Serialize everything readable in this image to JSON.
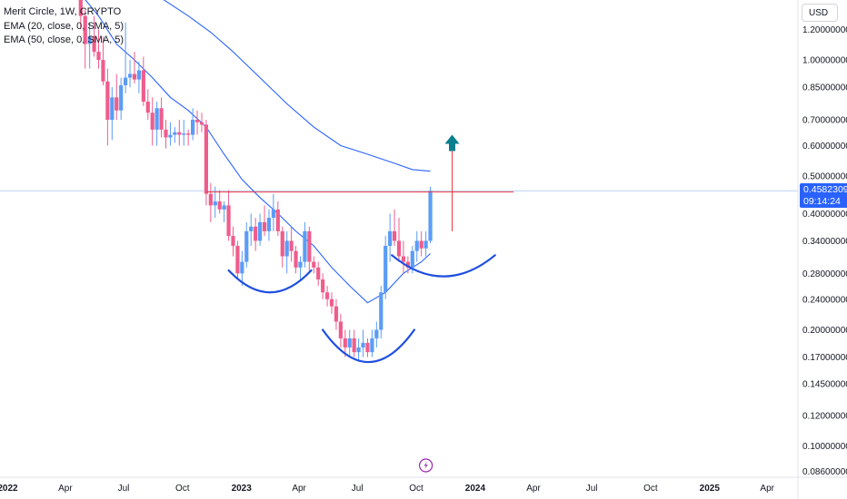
{
  "legend": {
    "title": "Merit Circle, 1W, CRYPTO",
    "ema20": "EMA (20, close, 0, SMA, 5)",
    "ema50": "EMA (50, close, 0, SMA, 5)"
  },
  "currency": "USD",
  "price_badge": {
    "price": "0.45823090",
    "countdown": "09:14:24"
  },
  "colors": {
    "up": "#5b9cf6",
    "down": "#ef5d8c",
    "ema": "#2962ff",
    "resistance": "#f23645",
    "cup": "#1e4fe0",
    "arrow": "#087f8c",
    "badge": "#2962ff",
    "lightning": "#9c27b0"
  },
  "icons": {
    "event_marker": "lightning-icon",
    "target_arrow": "up-arrow-icon"
  },
  "chart_data": {
    "type": "candlestick",
    "scale": "log",
    "title": "Merit Circle, 1W, CRYPTO",
    "xlabel": "",
    "ylabel": "",
    "grid": false,
    "ylim": [
      0.083,
      1.43
    ],
    "xlim": [
      "2021-12-20",
      "2025-05-19"
    ],
    "y_ticks": [
      "1.20000000",
      "1.00000000",
      "0.85000000",
      "0.70000000",
      "0.60000000",
      "0.50000000",
      "0.40000000",
      "0.34000000",
      "0.28000000",
      "0.24000000",
      "0.20000000",
      "0.17000000",
      "0.14500000",
      "0.12000000",
      "0.10000000",
      "0.08600000"
    ],
    "y_tick_values": [
      1.2,
      1.0,
      0.85,
      0.7,
      0.6,
      0.5,
      0.4,
      0.34,
      0.28,
      0.24,
      0.2,
      0.17,
      0.145,
      0.12,
      0.1,
      0.086
    ],
    "x_ticks": [
      {
        "label": "2022",
        "date": "2022-01-01",
        "year": true
      },
      {
        "label": "Apr",
        "date": "2022-04-01"
      },
      {
        "label": "Jul",
        "date": "2022-07-01"
      },
      {
        "label": "Oct",
        "date": "2022-10-01"
      },
      {
        "label": "2023",
        "date": "2023-01-01",
        "year": true
      },
      {
        "label": "Apr",
        "date": "2023-04-01"
      },
      {
        "label": "Jul",
        "date": "2023-07-01"
      },
      {
        "label": "Oct",
        "date": "2023-10-01"
      },
      {
        "label": "2024",
        "date": "2024-01-01",
        "year": true
      },
      {
        "label": "Apr",
        "date": "2024-04-01"
      },
      {
        "label": "Jul",
        "date": "2024-07-01"
      },
      {
        "label": "Oct",
        "date": "2024-10-01"
      },
      {
        "label": "2025",
        "date": "2025-01-01",
        "year": true
      },
      {
        "label": "Apr",
        "date": "2025-04-01"
      }
    ],
    "candles": [
      {
        "t": "2022-04-25",
        "o": 1.45,
        "h": 1.5,
        "l": 1.2,
        "c": 1.3
      },
      {
        "t": "2022-05-02",
        "o": 1.3,
        "h": 1.35,
        "l": 0.95,
        "c": 1.1
      },
      {
        "t": "2022-05-09",
        "o": 1.1,
        "h": 1.25,
        "l": 0.95,
        "c": 1.15
      },
      {
        "t": "2022-05-16",
        "o": 1.15,
        "h": 1.3,
        "l": 1.02,
        "c": 1.05
      },
      {
        "t": "2022-05-23",
        "o": 1.05,
        "h": 1.2,
        "l": 0.95,
        "c": 1.0
      },
      {
        "t": "2022-05-30",
        "o": 1.0,
        "h": 1.15,
        "l": 0.86,
        "c": 0.88
      },
      {
        "t": "2022-06-06",
        "o": 0.88,
        "h": 0.95,
        "l": 0.6,
        "c": 0.7
      },
      {
        "t": "2022-06-13",
        "o": 0.7,
        "h": 0.85,
        "l": 0.62,
        "c": 0.8
      },
      {
        "t": "2022-06-20",
        "o": 0.8,
        "h": 0.92,
        "l": 0.7,
        "c": 0.74
      },
      {
        "t": "2022-06-27",
        "o": 0.74,
        "h": 0.9,
        "l": 0.7,
        "c": 0.86
      },
      {
        "t": "2022-07-04",
        "o": 0.86,
        "h": 1.25,
        "l": 0.82,
        "c": 0.9
      },
      {
        "t": "2022-07-11",
        "o": 0.9,
        "h": 1.0,
        "l": 0.85,
        "c": 0.92
      },
      {
        "t": "2022-07-18",
        "o": 0.92,
        "h": 1.05,
        "l": 0.87,
        "c": 0.89
      },
      {
        "t": "2022-07-25",
        "o": 0.89,
        "h": 0.99,
        "l": 0.82,
        "c": 0.94
      },
      {
        "t": "2022-08-01",
        "o": 0.94,
        "h": 1.02,
        "l": 0.76,
        "c": 0.78
      },
      {
        "t": "2022-08-08",
        "o": 0.78,
        "h": 0.84,
        "l": 0.7,
        "c": 0.73
      },
      {
        "t": "2022-08-15",
        "o": 0.73,
        "h": 0.8,
        "l": 0.6,
        "c": 0.66
      },
      {
        "t": "2022-08-22",
        "o": 0.66,
        "h": 0.78,
        "l": 0.6,
        "c": 0.75
      },
      {
        "t": "2022-08-29",
        "o": 0.75,
        "h": 0.8,
        "l": 0.63,
        "c": 0.66
      },
      {
        "t": "2022-09-05",
        "o": 0.66,
        "h": 0.7,
        "l": 0.59,
        "c": 0.63
      },
      {
        "t": "2022-09-12",
        "o": 0.63,
        "h": 0.69,
        "l": 0.6,
        "c": 0.64
      },
      {
        "t": "2022-09-19",
        "o": 0.64,
        "h": 0.67,
        "l": 0.61,
        "c": 0.65
      },
      {
        "t": "2022-09-26",
        "o": 0.65,
        "h": 0.7,
        "l": 0.6,
        "c": 0.64
      },
      {
        "t": "2022-10-03",
        "o": 0.64,
        "h": 0.7,
        "l": 0.6,
        "c": 0.645
      },
      {
        "t": "2022-10-10",
        "o": 0.645,
        "h": 0.66,
        "l": 0.6,
        "c": 0.64
      },
      {
        "t": "2022-10-17",
        "o": 0.64,
        "h": 0.75,
        "l": 0.62,
        "c": 0.7
      },
      {
        "t": "2022-10-24",
        "o": 0.7,
        "h": 0.74,
        "l": 0.64,
        "c": 0.69
      },
      {
        "t": "2022-10-31",
        "o": 0.69,
        "h": 0.73,
        "l": 0.65,
        "c": 0.68
      },
      {
        "t": "2022-11-07",
        "o": 0.68,
        "h": 0.7,
        "l": 0.42,
        "c": 0.45
      },
      {
        "t": "2022-11-14",
        "o": 0.45,
        "h": 0.48,
        "l": 0.38,
        "c": 0.42
      },
      {
        "t": "2022-11-21",
        "o": 0.42,
        "h": 0.47,
        "l": 0.39,
        "c": 0.43
      },
      {
        "t": "2022-11-28",
        "o": 0.43,
        "h": 0.46,
        "l": 0.4,
        "c": 0.41
      },
      {
        "t": "2022-12-05",
        "o": 0.41,
        "h": 0.43,
        "l": 0.38,
        "c": 0.42
      },
      {
        "t": "2022-12-12",
        "o": 0.42,
        "h": 0.46,
        "l": 0.34,
        "c": 0.35
      },
      {
        "t": "2022-12-19",
        "o": 0.35,
        "h": 0.37,
        "l": 0.31,
        "c": 0.33
      },
      {
        "t": "2022-12-26",
        "o": 0.33,
        "h": 0.34,
        "l": 0.27,
        "c": 0.28
      },
      {
        "t": "2023-01-02",
        "o": 0.28,
        "h": 0.32,
        "l": 0.26,
        "c": 0.3
      },
      {
        "t": "2023-01-09",
        "o": 0.3,
        "h": 0.38,
        "l": 0.29,
        "c": 0.36
      },
      {
        "t": "2023-01-16",
        "o": 0.36,
        "h": 0.4,
        "l": 0.33,
        "c": 0.37
      },
      {
        "t": "2023-01-23",
        "o": 0.37,
        "h": 0.39,
        "l": 0.32,
        "c": 0.34
      },
      {
        "t": "2023-01-30",
        "o": 0.34,
        "h": 0.4,
        "l": 0.33,
        "c": 0.38
      },
      {
        "t": "2023-02-06",
        "o": 0.38,
        "h": 0.42,
        "l": 0.35,
        "c": 0.36
      },
      {
        "t": "2023-02-13",
        "o": 0.36,
        "h": 0.41,
        "l": 0.34,
        "c": 0.39
      },
      {
        "t": "2023-02-20",
        "o": 0.39,
        "h": 0.45,
        "l": 0.36,
        "c": 0.41
      },
      {
        "t": "2023-02-27",
        "o": 0.41,
        "h": 0.43,
        "l": 0.35,
        "c": 0.36
      },
      {
        "t": "2023-03-06",
        "o": 0.36,
        "h": 0.37,
        "l": 0.29,
        "c": 0.31
      },
      {
        "t": "2023-03-13",
        "o": 0.31,
        "h": 0.36,
        "l": 0.28,
        "c": 0.34
      },
      {
        "t": "2023-03-20",
        "o": 0.34,
        "h": 0.37,
        "l": 0.3,
        "c": 0.32
      },
      {
        "t": "2023-03-27",
        "o": 0.32,
        "h": 0.33,
        "l": 0.28,
        "c": 0.29
      },
      {
        "t": "2023-04-03",
        "o": 0.29,
        "h": 0.31,
        "l": 0.27,
        "c": 0.3
      },
      {
        "t": "2023-04-10",
        "o": 0.3,
        "h": 0.38,
        "l": 0.29,
        "c": 0.36
      },
      {
        "t": "2023-04-17",
        "o": 0.36,
        "h": 0.37,
        "l": 0.28,
        "c": 0.3
      },
      {
        "t": "2023-04-24",
        "o": 0.3,
        "h": 0.31,
        "l": 0.28,
        "c": 0.29
      },
      {
        "t": "2023-05-01",
        "o": 0.29,
        "h": 0.3,
        "l": 0.26,
        "c": 0.27
      },
      {
        "t": "2023-05-08",
        "o": 0.27,
        "h": 0.28,
        "l": 0.24,
        "c": 0.25
      },
      {
        "t": "2023-05-15",
        "o": 0.25,
        "h": 0.26,
        "l": 0.23,
        "c": 0.24
      },
      {
        "t": "2023-05-22",
        "o": 0.24,
        "h": 0.25,
        "l": 0.22,
        "c": 0.23
      },
      {
        "t": "2023-05-29",
        "o": 0.23,
        "h": 0.24,
        "l": 0.2,
        "c": 0.21
      },
      {
        "t": "2023-06-05",
        "o": 0.21,
        "h": 0.22,
        "l": 0.18,
        "c": 0.19
      },
      {
        "t": "2023-06-12",
        "o": 0.19,
        "h": 0.2,
        "l": 0.17,
        "c": 0.18
      },
      {
        "t": "2023-06-19",
        "o": 0.18,
        "h": 0.2,
        "l": 0.17,
        "c": 0.19
      },
      {
        "t": "2023-06-26",
        "o": 0.19,
        "h": 0.2,
        "l": 0.17,
        "c": 0.175
      },
      {
        "t": "2023-07-03",
        "o": 0.175,
        "h": 0.19,
        "l": 0.165,
        "c": 0.18
      },
      {
        "t": "2023-07-10",
        "o": 0.18,
        "h": 0.2,
        "l": 0.17,
        "c": 0.185
      },
      {
        "t": "2023-07-17",
        "o": 0.185,
        "h": 0.19,
        "l": 0.17,
        "c": 0.175
      },
      {
        "t": "2023-07-24",
        "o": 0.175,
        "h": 0.2,
        "l": 0.17,
        "c": 0.19
      },
      {
        "t": "2023-07-31",
        "o": 0.19,
        "h": 0.21,
        "l": 0.18,
        "c": 0.2
      },
      {
        "t": "2023-08-07",
        "o": 0.2,
        "h": 0.26,
        "l": 0.19,
        "c": 0.25
      },
      {
        "t": "2023-08-14",
        "o": 0.25,
        "h": 0.35,
        "l": 0.24,
        "c": 0.33
      },
      {
        "t": "2023-08-21",
        "o": 0.33,
        "h": 0.4,
        "l": 0.3,
        "c": 0.36
      },
      {
        "t": "2023-08-28",
        "o": 0.36,
        "h": 0.41,
        "l": 0.33,
        "c": 0.34
      },
      {
        "t": "2023-09-04",
        "o": 0.34,
        "h": 0.39,
        "l": 0.3,
        "c": 0.31
      },
      {
        "t": "2023-09-11",
        "o": 0.31,
        "h": 0.34,
        "l": 0.28,
        "c": 0.3
      },
      {
        "t": "2023-09-18",
        "o": 0.3,
        "h": 0.31,
        "l": 0.28,
        "c": 0.29
      },
      {
        "t": "2023-09-25",
        "o": 0.29,
        "h": 0.33,
        "l": 0.28,
        "c": 0.32
      },
      {
        "t": "2023-10-02",
        "o": 0.32,
        "h": 0.36,
        "l": 0.3,
        "c": 0.34
      },
      {
        "t": "2023-10-09",
        "o": 0.34,
        "h": 0.36,
        "l": 0.31,
        "c": 0.325
      },
      {
        "t": "2023-10-16",
        "o": 0.325,
        "h": 0.36,
        "l": 0.31,
        "c": 0.34
      },
      {
        "t": "2023-10-23",
        "o": 0.34,
        "h": 0.47,
        "l": 0.335,
        "c": 0.458
      }
    ],
    "ema20": [
      {
        "t": "2022-04-25",
        "v": 1.48
      },
      {
        "t": "2022-05-23",
        "v": 1.3
      },
      {
        "t": "2022-06-20",
        "v": 1.1
      },
      {
        "t": "2022-07-18",
        "v": 1.0
      },
      {
        "t": "2022-08-15",
        "v": 0.9
      },
      {
        "t": "2022-09-12",
        "v": 0.8
      },
      {
        "t": "2022-10-10",
        "v": 0.74
      },
      {
        "t": "2022-11-07",
        "v": 0.67
      },
      {
        "t": "2022-12-05",
        "v": 0.57
      },
      {
        "t": "2023-01-02",
        "v": 0.49
      },
      {
        "t": "2023-01-30",
        "v": 0.44
      },
      {
        "t": "2023-02-27",
        "v": 0.4
      },
      {
        "t": "2023-03-27",
        "v": 0.36
      },
      {
        "t": "2023-04-24",
        "v": 0.33
      },
      {
        "t": "2023-05-22",
        "v": 0.29
      },
      {
        "t": "2023-06-19",
        "v": 0.26
      },
      {
        "t": "2023-07-17",
        "v": 0.235
      },
      {
        "t": "2023-08-14",
        "v": 0.25
      },
      {
        "t": "2023-09-11",
        "v": 0.28
      },
      {
        "t": "2023-10-09",
        "v": 0.3
      },
      {
        "t": "2023-10-23",
        "v": 0.315
      }
    ],
    "ema50": [
      {
        "t": "2022-08-01",
        "v": 1.55
      },
      {
        "t": "2022-09-05",
        "v": 1.42
      },
      {
        "t": "2022-10-10",
        "v": 1.3
      },
      {
        "t": "2022-11-14",
        "v": 1.18
      },
      {
        "t": "2022-12-19",
        "v": 1.05
      },
      {
        "t": "2023-01-30",
        "v": 0.9
      },
      {
        "t": "2023-03-13",
        "v": 0.77
      },
      {
        "t": "2023-04-24",
        "v": 0.67
      },
      {
        "t": "2023-06-05",
        "v": 0.6
      },
      {
        "t": "2023-07-17",
        "v": 0.57
      },
      {
        "t": "2023-08-28",
        "v": 0.54
      },
      {
        "t": "2023-09-25",
        "v": 0.52
      },
      {
        "t": "2023-10-23",
        "v": 0.515
      }
    ],
    "resistance_line": {
      "from": "2022-11-07",
      "to": "2024-03-01",
      "price": 0.455
    },
    "crosshair_price": 0.458,
    "target_arrow": {
      "date": "2023-11-26",
      "from": 0.36,
      "to": 0.6
    },
    "cups": [
      {
        "name": "left-shoulder",
        "from": "2022-12-12",
        "to": "2023-04-20",
        "rim": 0.285,
        "bottom": 0.25
      },
      {
        "name": "head",
        "from": "2023-05-08",
        "to": "2023-09-28",
        "rim": 0.2,
        "bottom": 0.165
      },
      {
        "name": "right-shoulder",
        "from": "2023-08-24",
        "to": "2024-02-01",
        "rim": 0.312,
        "bottom": 0.275
      }
    ],
    "event_marker": {
      "date": "2023-10-16"
    }
  }
}
